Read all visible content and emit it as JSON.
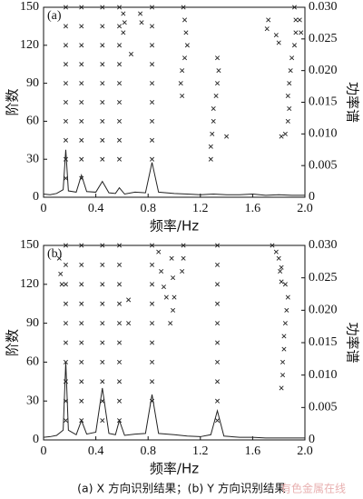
{
  "caption": "(a) X 方向识别结果；(b) Y 方向识别结果",
  "watermark": "有色金属在线",
  "chart_data": [
    {
      "type": "stabilization",
      "panel_label": "(a)",
      "x_label": "频率/Hz",
      "y_label": "阶数",
      "y2_label": "功率谱",
      "xlim": [
        0,
        2
      ],
      "xticks": [
        0,
        0.4,
        0.8,
        1.2,
        1.6,
        {
          "value": 2,
          "label": "2.0"
        }
      ],
      "ylim": [
        0,
        150
      ],
      "yticks": [
        0,
        30,
        60,
        90,
        120,
        150
      ],
      "y2lim": [
        0,
        0.03
      ],
      "y2ticks": [
        0,
        0.005,
        {
          "value": 0.01,
          "label": "0.010"
        },
        0.015,
        {
          "value": 0.02,
          "label": "0.020"
        },
        0.025,
        {
          "value": 0.03,
          "label": "0.030"
        }
      ],
      "series": [
        {
          "type": "scatter",
          "color": "#222",
          "x": [
            0.17,
            0.17,
            0.17,
            0.17,
            0.17,
            0.17,
            0.17,
            0.17,
            0.17,
            0.17,
            0.29,
            0.29,
            0.29,
            0.29,
            0.29,
            0.29,
            0.29,
            0.29,
            0.29,
            0.29,
            0.45,
            0.45,
            0.45,
            0.45,
            0.45,
            0.45,
            0.45,
            0.45,
            0.45,
            0.58,
            0.58,
            0.58,
            0.58,
            0.58,
            0.58,
            0.58,
            0.58,
            0.58,
            0.61,
            0.62,
            0.61,
            0.67,
            0.74,
            0.75,
            0.83,
            0.83,
            0.83,
            0.83,
            0.83,
            0.83,
            0.83,
            0.83,
            0.83,
            1.07,
            1.08,
            1.09,
            1.1,
            1.08,
            1.06,
            1.05,
            1.06,
            1.33,
            1.34,
            1.33,
            1.32,
            1.3,
            1.3,
            1.29,
            1.28,
            1.28,
            1.4,
            1.72,
            1.71,
            1.78,
            1.8,
            1.92,
            1.93,
            1.93,
            1.92,
            1.9,
            1.89,
            1.88,
            1.87,
            1.88,
            1.87,
            1.85,
            1.82,
            1.96,
            1.97
          ],
          "values": [
            15,
            30,
            45,
            60,
            75,
            90,
            105,
            120,
            135,
            150,
            15,
            30,
            45,
            60,
            75,
            90,
            105,
            120,
            135,
            150,
            30,
            45,
            60,
            75,
            90,
            105,
            120,
            135,
            150,
            30,
            45,
            60,
            75,
            90,
            105,
            120,
            135,
            150,
            130,
            138,
            145,
            113,
            145,
            138,
            30,
            45,
            60,
            75,
            90,
            105,
            120,
            135,
            150,
            150,
            140,
            130,
            120,
            110,
            100,
            90,
            80,
            110,
            100,
            90,
            80,
            70,
            60,
            50,
            40,
            30,
            48,
            140,
            133,
            128,
            122,
            150,
            140,
            130,
            120,
            110,
            100,
            90,
            80,
            70,
            60,
            50,
            48,
            140,
            130
          ]
        },
        {
          "type": "line",
          "axis": "y2",
          "color": "#222",
          "x": [
            0,
            0.05,
            0.1,
            0.15,
            0.17,
            0.19,
            0.25,
            0.29,
            0.33,
            0.4,
            0.45,
            0.5,
            0.55,
            0.58,
            0.62,
            0.7,
            0.78,
            0.83,
            0.88,
            1.0,
            1.1,
            1.2,
            1.3,
            1.4,
            1.5,
            1.6,
            1.7,
            1.8,
            1.9,
            2.0
          ],
          "values": [
            0.0005,
            0.0004,
            0.0006,
            0.0012,
            0.0075,
            0.001,
            0.0008,
            0.0035,
            0.0009,
            0.0008,
            0.0025,
            0.0007,
            0.0006,
            0.0015,
            0.0005,
            0.0008,
            0.0007,
            0.0055,
            0.0008,
            0.0006,
            0.0005,
            0.0004,
            0.0005,
            0.0004,
            0.0004,
            0.0005,
            0.0003,
            0.0004,
            0.0003,
            0.0003
          ]
        }
      ]
    },
    {
      "type": "stabilization",
      "panel_label": "(b)",
      "x_label": "频率/Hz",
      "y_label": "阶数",
      "y2_label": "功率谱",
      "xlim": [
        0,
        2
      ],
      "xticks": [
        0,
        0.4,
        0.8,
        1.2,
        1.6,
        {
          "value": 2,
          "label": "2.0"
        }
      ],
      "ylim": [
        0,
        150
      ],
      "yticks": [
        0,
        30,
        60,
        90,
        120,
        150
      ],
      "y2lim": [
        0,
        0.03
      ],
      "y2ticks": [
        0,
        0.005,
        {
          "value": 0.01,
          "label": "0.010"
        },
        0.015,
        {
          "value": 0.02,
          "label": "0.020"
        },
        0.025,
        {
          "value": 0.03,
          "label": "0.030"
        }
      ],
      "series": [
        {
          "type": "scatter",
          "color": "#222",
          "x": [
            0.17,
            0.17,
            0.17,
            0.17,
            0.17,
            0.17,
            0.17,
            0.17,
            0.17,
            0.17,
            0.29,
            0.29,
            0.29,
            0.29,
            0.29,
            0.29,
            0.29,
            0.29,
            0.29,
            0.29,
            0.45,
            0.45,
            0.45,
            0.45,
            0.45,
            0.45,
            0.45,
            0.45,
            0.45,
            0.45,
            0.58,
            0.58,
            0.58,
            0.58,
            0.58,
            0.58,
            0.58,
            0.58,
            0.58,
            0.58,
            0.83,
            0.83,
            0.83,
            0.83,
            0.83,
            0.83,
            0.83,
            0.83,
            0.83,
            1.33,
            1.33,
            1.33,
            1.33,
            1.33,
            1.33,
            1.33,
            1.33,
            1.33,
            1.33,
            0.12,
            0.13,
            0.14,
            0.65,
            0.65,
            0.88,
            0.9,
            0.92,
            0.94,
            0.98,
            0.99,
            1.0,
            0.99,
            0.97,
            1.07,
            1.07,
            1.06,
            1.75,
            1.78,
            1.8,
            1.81,
            1.82,
            1.82,
            1.85,
            1.87,
            1.86,
            1.85,
            1.84,
            1.84,
            1.83,
            1.83,
            1.82
          ],
          "values": [
            15,
            30,
            45,
            60,
            75,
            90,
            105,
            120,
            135,
            150,
            15,
            30,
            45,
            60,
            75,
            90,
            105,
            120,
            135,
            150,
            15,
            30,
            45,
            60,
            75,
            90,
            105,
            120,
            135,
            150,
            15,
            30,
            45,
            60,
            75,
            90,
            105,
            120,
            135,
            150,
            30,
            45,
            60,
            75,
            90,
            105,
            120,
            135,
            150,
            15,
            30,
            45,
            60,
            75,
            90,
            105,
            120,
            135,
            150,
            140,
            128,
            120,
            108,
            90,
            145,
            130,
            118,
            110,
            140,
            125,
            110,
            100,
            90,
            150,
            140,
            130,
            150,
            145,
            140,
            130,
            133,
            122,
            120,
            110,
            100,
            90,
            80,
            70,
            60,
            50,
            40
          ]
        },
        {
          "type": "line",
          "axis": "y2",
          "color": "#222",
          "x": [
            0,
            0.05,
            0.1,
            0.15,
            0.17,
            0.19,
            0.25,
            0.29,
            0.33,
            0.4,
            0.45,
            0.5,
            0.55,
            0.58,
            0.62,
            0.7,
            0.78,
            0.83,
            0.88,
            1.0,
            1.1,
            1.2,
            1.28,
            1.33,
            1.38,
            1.5,
            1.6,
            1.7,
            1.8,
            1.9,
            2.0
          ],
          "values": [
            0.0004,
            0.0005,
            0.0007,
            0.0015,
            0.012,
            0.0015,
            0.0008,
            0.003,
            0.0009,
            0.0012,
            0.008,
            0.001,
            0.0008,
            0.003,
            0.0007,
            0.0009,
            0.001,
            0.007,
            0.001,
            0.0008,
            0.0006,
            0.0005,
            0.0008,
            0.0045,
            0.0006,
            0.0004,
            0.0004,
            0.0003,
            0.0003,
            0.0003,
            0.0003
          ]
        }
      ]
    }
  ]
}
